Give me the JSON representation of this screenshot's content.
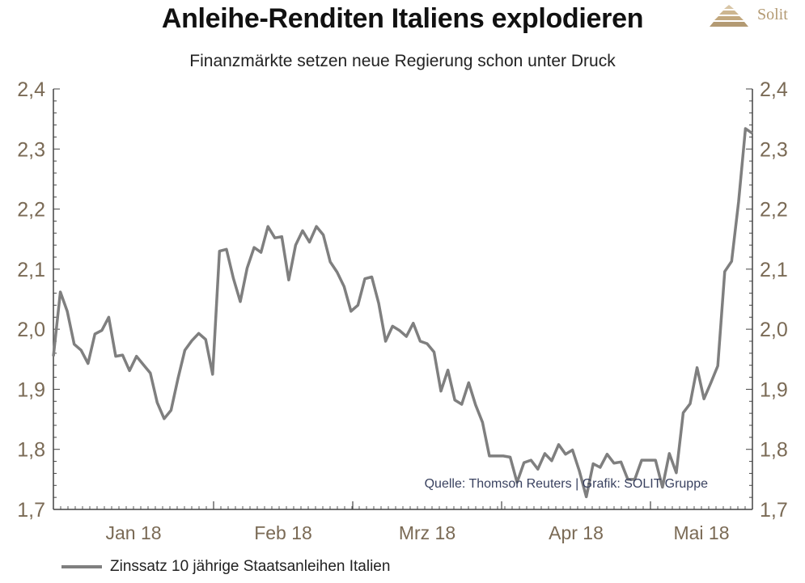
{
  "header": {
    "title": "Anleihe-Renditen Italiens explodieren",
    "subtitle": "Finanzmärkte setzen neue Regierung schon unter Druck",
    "logo_text": "Solit"
  },
  "colors": {
    "line": "#7f7f7f",
    "axis": "#444444",
    "tick_label": "#7a6a55",
    "logo": "#b39a73"
  },
  "chart_data": {
    "type": "line",
    "title": "Anleihe-Renditen Italiens explodieren",
    "subtitle": "Finanzmärkte setzen neue Regierung schon unter Druck",
    "xlabel": "",
    "ylabel": "",
    "ylim": [
      1.7,
      2.4
    ],
    "yticks": [
      "1,7",
      "1,8",
      "1,9",
      "2,0",
      "2,1",
      "2,2",
      "2,3",
      "2,4"
    ],
    "ytick_values": [
      1.7,
      1.8,
      1.9,
      2.0,
      2.1,
      2.2,
      2.3,
      2.4
    ],
    "secondary_y_axis": true,
    "xticks": [
      "Jan 18",
      "Feb 18",
      "Mrz 18",
      "Apr 18",
      "Mai 18"
    ],
    "grid": false,
    "legend": "bottom-left",
    "source": "Quelle: Thomson Reuters | Grafik: SOLIT Gruppe",
    "series": [
      {
        "name": "Zinssatz 10 jährige Staatsanleihen Italien",
        "values": [
          1.955,
          2.062,
          2.03,
          1.975,
          1.965,
          1.943,
          1.992,
          1.998,
          2.02,
          1.955,
          1.957,
          1.931,
          1.955,
          1.941,
          1.927,
          1.878,
          1.851,
          1.865,
          1.918,
          1.965,
          1.981,
          1.993,
          1.983,
          1.925,
          2.13,
          2.133,
          2.085,
          2.046,
          2.102,
          2.136,
          2.128,
          2.171,
          2.152,
          2.154,
          2.082,
          2.14,
          2.164,
          2.145,
          2.171,
          2.157,
          2.112,
          2.095,
          2.071,
          2.03,
          2.04,
          2.084,
          2.087,
          2.043,
          1.98,
          2.005,
          1.998,
          1.988,
          2.01,
          1.98,
          1.976,
          1.962,
          1.897,
          1.932,
          1.882,
          1.875,
          1.911,
          1.874,
          1.845,
          1.789,
          1.789,
          1.789,
          1.787,
          1.745,
          1.778,
          1.782,
          1.767,
          1.793,
          1.781,
          1.808,
          1.792,
          1.799,
          1.764,
          1.721,
          1.776,
          1.77,
          1.792,
          1.777,
          1.779,
          1.75,
          1.75,
          1.782,
          1.782,
          1.782,
          1.737,
          1.793,
          1.761,
          1.861,
          1.876,
          1.936,
          1.884,
          1.911,
          1.939,
          2.096,
          2.113,
          2.212,
          2.334,
          2.326
        ]
      }
    ]
  },
  "legend": {
    "label": "Zinssatz 10 jährige Staatsanleihen Italien"
  }
}
